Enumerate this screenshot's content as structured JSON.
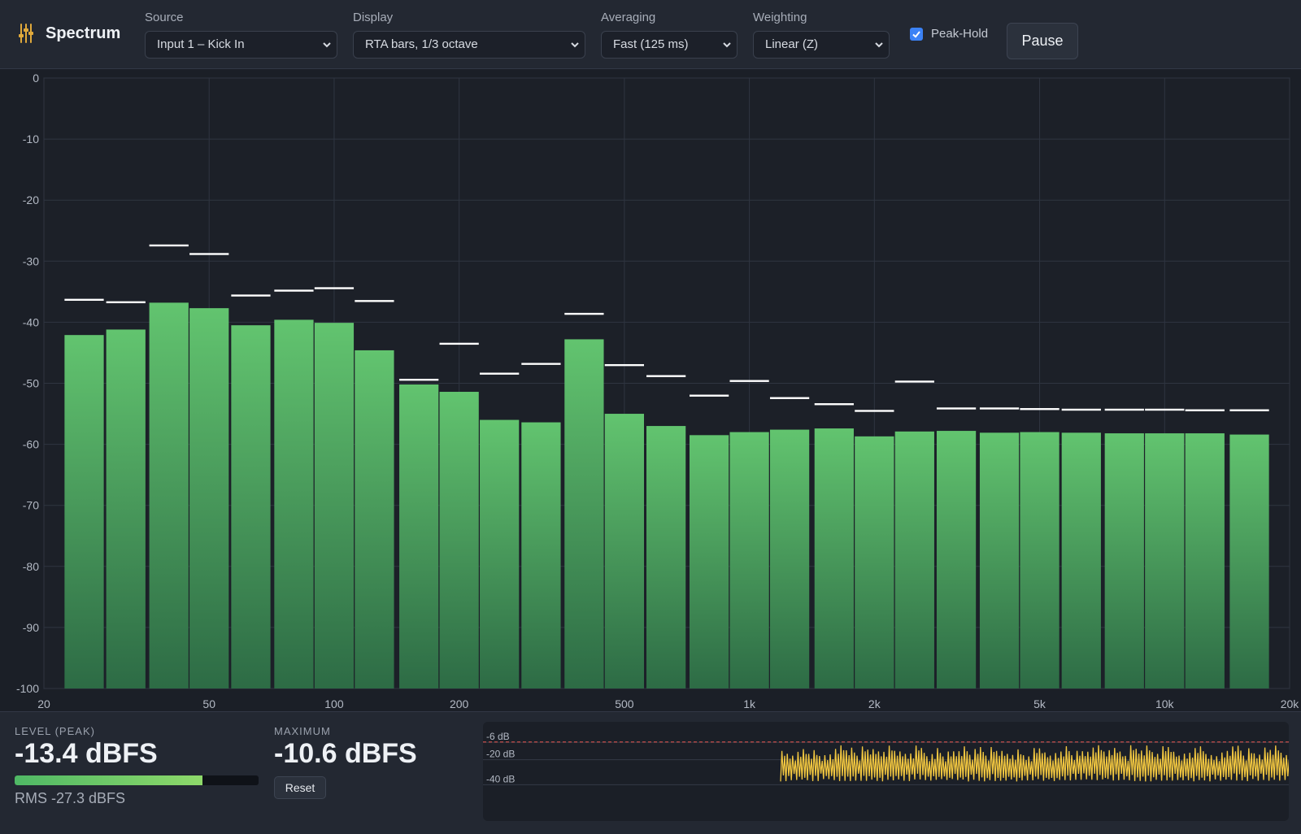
{
  "app": {
    "title": "Spectrum",
    "icon": "sliders-icon"
  },
  "toolbar": {
    "source": {
      "label": "Source",
      "value": "Input 1 – Kick In"
    },
    "display": {
      "label": "Display",
      "value": "RTA bars, 1/3 octave"
    },
    "averaging": {
      "label": "Averaging",
      "value": "Fast (125 ms)"
    },
    "weighting": {
      "label": "Weighting",
      "value": "Linear (Z)"
    },
    "peak_hold": {
      "label": "Peak-Hold",
      "checked": true
    },
    "pause_label": "Pause"
  },
  "colors": {
    "background": "#1b1f27",
    "panel": "#232832",
    "bar_top": "#62c46f",
    "bar_bottom": "#2d6b45",
    "peak_marker": "#ffffff",
    "history_trace": "#f2c740",
    "history_threshold": "#d9534f",
    "checkbox": "#3b82f6"
  },
  "chart_data": {
    "type": "bar",
    "x_scale": "log",
    "x_ticks": [
      {
        "value": 20,
        "label": "20"
      },
      {
        "value": 50,
        "label": "50"
      },
      {
        "value": 100,
        "label": "100"
      },
      {
        "value": 200,
        "label": "200"
      },
      {
        "value": 500,
        "label": "500"
      },
      {
        "value": 1000,
        "label": "1k"
      },
      {
        "value": 2000,
        "label": "2k"
      },
      {
        "value": 5000,
        "label": "5k"
      },
      {
        "value": 10000,
        "label": "10k"
      },
      {
        "value": 20000,
        "label": "20k"
      }
    ],
    "xlim": [
      20,
      20000
    ],
    "ylim": [
      -100,
      0
    ],
    "y_ticks": [
      0,
      -10,
      -20,
      -30,
      -40,
      -50,
      -60,
      -70,
      -80,
      -90,
      -100
    ],
    "grid": true,
    "bands_hz": [
      25,
      31.5,
      40,
      50,
      63,
      80,
      100,
      125,
      160,
      200,
      250,
      315,
      400,
      500,
      630,
      800,
      1000,
      1250,
      1600,
      2000,
      2500,
      3150,
      4000,
      5000,
      6300,
      8000,
      10000,
      12500,
      16000
    ],
    "series": [
      {
        "values": [
          -42.1,
          -41.2,
          -36.8,
          -37.7,
          -40.5,
          -39.6,
          -40.1,
          -44.6,
          -50.2,
          -51.4,
          -56.0,
          -56.4,
          -42.8,
          -55.0,
          -57.0,
          -58.5,
          -58.0,
          -57.6,
          -57.4,
          -58.7,
          -57.9,
          -57.8,
          -58.1,
          -58.0,
          -58.1,
          -58.2,
          -58.2,
          -58.2,
          -58.4
        ]
      },
      {
        "values": [
          -36.3,
          -36.7,
          -27.4,
          -28.8,
          -35.6,
          -34.8,
          -34.4,
          -36.5,
          -49.4,
          -43.5,
          -48.4,
          -46.8,
          -38.6,
          -47.0,
          -48.8,
          -52.0,
          -49.6,
          -52.4,
          -53.4,
          -54.5,
          -49.7,
          -54.1,
          -54.1,
          -54.2,
          -54.3,
          -54.3,
          -54.3,
          -54.4,
          -54.4
        ]
      }
    ]
  },
  "level": {
    "label": "LEVEL (PEAK)",
    "value": "-13.4 dBFS",
    "meter_fraction": 0.77,
    "rms": "RMS -27.3 dBFS"
  },
  "maximum": {
    "label": "MAXIMUM",
    "value": "-10.6 dBFS",
    "reset_label": "Reset"
  },
  "history": {
    "labels": [
      "-6 dB",
      "-20 dB",
      "-40 dB"
    ],
    "label_db": [
      -6,
      -20,
      -40
    ],
    "threshold_db": -9,
    "range_db": [
      -60,
      0
    ]
  }
}
